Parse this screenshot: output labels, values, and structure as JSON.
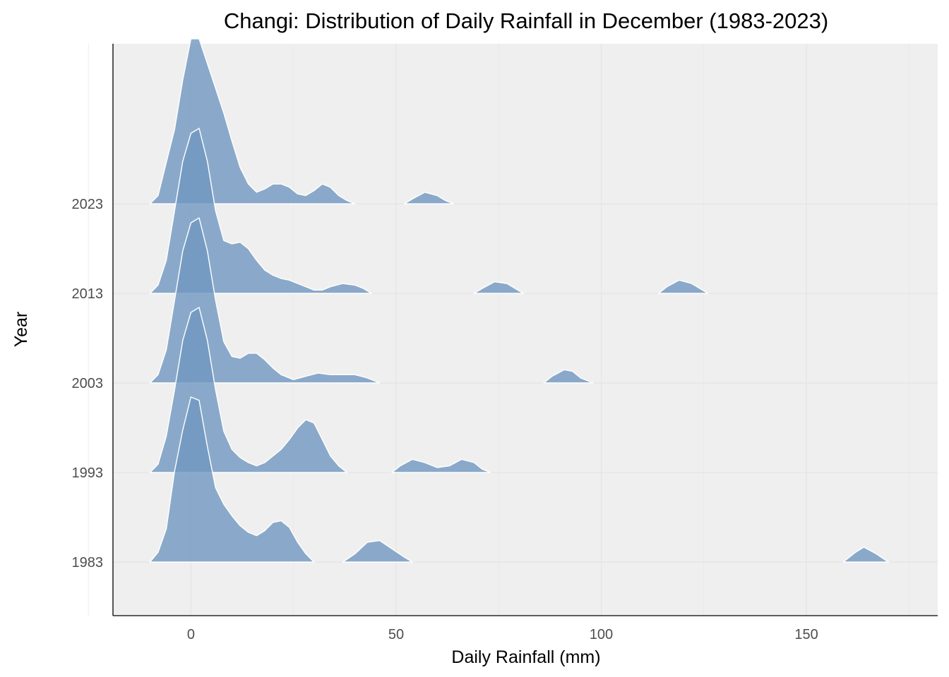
{
  "colors": {
    "panel_background": "#efefef",
    "grid": "#e4e4e4",
    "ridge_fill": "#7097c0",
    "ridge_outline": "#ffffff",
    "axis_line": "#000000"
  },
  "chart_data": {
    "type": "ridgeline",
    "title": "Changi: Distribution of Daily Rainfall in December (1983-2023)",
    "xlabel": "Daily Rainfall (mm)",
    "ylabel": "Year",
    "xlim": [
      -19,
      182
    ],
    "x_ticks": [
      0,
      50,
      100,
      150
    ],
    "x_tick_labels": [
      "0",
      "50",
      "100",
      "150"
    ],
    "y_categories": [
      "1983",
      "1993",
      "2003",
      "2013",
      "2023"
    ],
    "grid": true,
    "fill_opacity": 0.8,
    "series": [
      {
        "name": "1983",
        "density": [
          [
            -10,
            0
          ],
          [
            -8,
            0.06
          ],
          [
            -6,
            0.2
          ],
          [
            -4,
            0.55
          ],
          [
            -2,
            0.8
          ],
          [
            0,
            1.0
          ],
          [
            2,
            0.98
          ],
          [
            4,
            0.7
          ],
          [
            6,
            0.45
          ],
          [
            8,
            0.35
          ],
          [
            10,
            0.28
          ],
          [
            12,
            0.22
          ],
          [
            14,
            0.18
          ],
          [
            16,
            0.16
          ],
          [
            18,
            0.19
          ],
          [
            20,
            0.24
          ],
          [
            22,
            0.25
          ],
          [
            24,
            0.21
          ],
          [
            26,
            0.12
          ],
          [
            28,
            0.05
          ],
          [
            30,
            0
          ]
        ],
        "extra": [
          [
            [
              37,
              0
            ],
            [
              40,
              0.05
            ],
            [
              43,
              0.12
            ],
            [
              46,
              0.13
            ],
            [
              49,
              0.08
            ],
            [
              52,
              0.03
            ],
            [
              54,
              0
            ]
          ],
          [
            [
              159,
              0
            ],
            [
              162,
              0.06
            ],
            [
              164,
              0.09
            ],
            [
              167,
              0.05
            ],
            [
              170,
              0
            ]
          ]
        ]
      },
      {
        "name": "1993",
        "density": [
          [
            -10,
            0
          ],
          [
            -8,
            0.05
          ],
          [
            -6,
            0.22
          ],
          [
            -4,
            0.5
          ],
          [
            -2,
            0.8
          ],
          [
            0,
            0.97
          ],
          [
            2,
            1.0
          ],
          [
            4,
            0.8
          ],
          [
            6,
            0.5
          ],
          [
            8,
            0.25
          ],
          [
            10,
            0.14
          ],
          [
            12,
            0.09
          ],
          [
            14,
            0.06
          ],
          [
            16,
            0.04
          ],
          [
            18,
            0.06
          ],
          [
            20,
            0.1
          ],
          [
            22,
            0.14
          ],
          [
            24,
            0.2
          ],
          [
            26,
            0.27
          ],
          [
            28,
            0.32
          ],
          [
            30,
            0.3
          ],
          [
            32,
            0.2
          ],
          [
            34,
            0.1
          ],
          [
            36,
            0.04
          ],
          [
            38,
            0
          ]
        ],
        "extra": [
          [
            [
              49,
              0
            ],
            [
              51,
              0.04
            ],
            [
              54,
              0.08
            ],
            [
              57,
              0.06
            ],
            [
              60,
              0.03
            ],
            [
              63,
              0.04
            ],
            [
              66,
              0.08
            ],
            [
              69,
              0.06
            ],
            [
              71,
              0.02
            ],
            [
              73,
              0
            ]
          ]
        ]
      },
      {
        "name": "2003",
        "density": [
          [
            -10,
            0
          ],
          [
            -8,
            0.05
          ],
          [
            -6,
            0.2
          ],
          [
            -4,
            0.5
          ],
          [
            -2,
            0.8
          ],
          [
            0,
            0.97
          ],
          [
            2,
            1.0
          ],
          [
            4,
            0.8
          ],
          [
            6,
            0.5
          ],
          [
            8,
            0.25
          ],
          [
            10,
            0.16
          ],
          [
            12,
            0.15
          ],
          [
            14,
            0.18
          ],
          [
            16,
            0.18
          ],
          [
            18,
            0.14
          ],
          [
            20,
            0.09
          ],
          [
            22,
            0.05
          ],
          [
            25,
            0.02
          ],
          [
            28,
            0.04
          ],
          [
            31,
            0.06
          ],
          [
            34,
            0.05
          ],
          [
            37,
            0.05
          ],
          [
            40,
            0.05
          ],
          [
            43,
            0.03
          ],
          [
            46,
            0
          ]
        ],
        "extra": [
          [
            [
              86,
              0
            ],
            [
              88,
              0.04
            ],
            [
              91,
              0.08
            ],
            [
              93,
              0.07
            ],
            [
              95,
              0.03
            ],
            [
              98,
              0
            ]
          ]
        ]
      },
      {
        "name": "2013",
        "density": [
          [
            -10,
            0
          ],
          [
            -8,
            0.05
          ],
          [
            -6,
            0.2
          ],
          [
            -4,
            0.5
          ],
          [
            -2,
            0.8
          ],
          [
            0,
            0.97
          ],
          [
            2,
            1.0
          ],
          [
            4,
            0.8
          ],
          [
            6,
            0.5
          ],
          [
            8,
            0.32
          ],
          [
            10,
            0.3
          ],
          [
            12,
            0.31
          ],
          [
            14,
            0.27
          ],
          [
            16,
            0.2
          ],
          [
            18,
            0.14
          ],
          [
            20,
            0.11
          ],
          [
            22,
            0.09
          ],
          [
            24,
            0.08
          ],
          [
            26,
            0.06
          ],
          [
            28,
            0.04
          ],
          [
            30,
            0.02
          ],
          [
            32,
            0.02
          ],
          [
            34,
            0.04
          ],
          [
            37,
            0.06
          ],
          [
            40,
            0.05
          ],
          [
            42,
            0.03
          ],
          [
            44,
            0
          ]
        ],
        "extra": [
          [
            [
              69,
              0
            ],
            [
              71,
              0.03
            ],
            [
              74,
              0.07
            ],
            [
              77,
              0.06
            ],
            [
              79,
              0.03
            ],
            [
              81,
              0
            ]
          ],
          [
            [
              114,
              0
            ],
            [
              116,
              0.04
            ],
            [
              119,
              0.08
            ],
            [
              122,
              0.06
            ],
            [
              124,
              0.03
            ],
            [
              126,
              0
            ]
          ]
        ]
      },
      {
        "name": "2023",
        "density": [
          [
            -10,
            0
          ],
          [
            -8,
            0.05
          ],
          [
            -6,
            0.25
          ],
          [
            -4,
            0.45
          ],
          [
            -2,
            0.75
          ],
          [
            0,
            1.0
          ],
          [
            2,
            1.0
          ],
          [
            4,
            0.85
          ],
          [
            6,
            0.7
          ],
          [
            8,
            0.55
          ],
          [
            10,
            0.38
          ],
          [
            12,
            0.22
          ],
          [
            14,
            0.12
          ],
          [
            16,
            0.07
          ],
          [
            18,
            0.09
          ],
          [
            20,
            0.12
          ],
          [
            22,
            0.12
          ],
          [
            24,
            0.1
          ],
          [
            26,
            0.06
          ],
          [
            28,
            0.05
          ],
          [
            30,
            0.08
          ],
          [
            32,
            0.12
          ],
          [
            34,
            0.1
          ],
          [
            36,
            0.05
          ],
          [
            38,
            0.02
          ],
          [
            40,
            0
          ]
        ],
        "extra": [
          [
            [
              52,
              0
            ],
            [
              54,
              0.03
            ],
            [
              57,
              0.07
            ],
            [
              60,
              0.05
            ],
            [
              62,
              0.02
            ],
            [
              64,
              0
            ]
          ]
        ]
      }
    ]
  }
}
